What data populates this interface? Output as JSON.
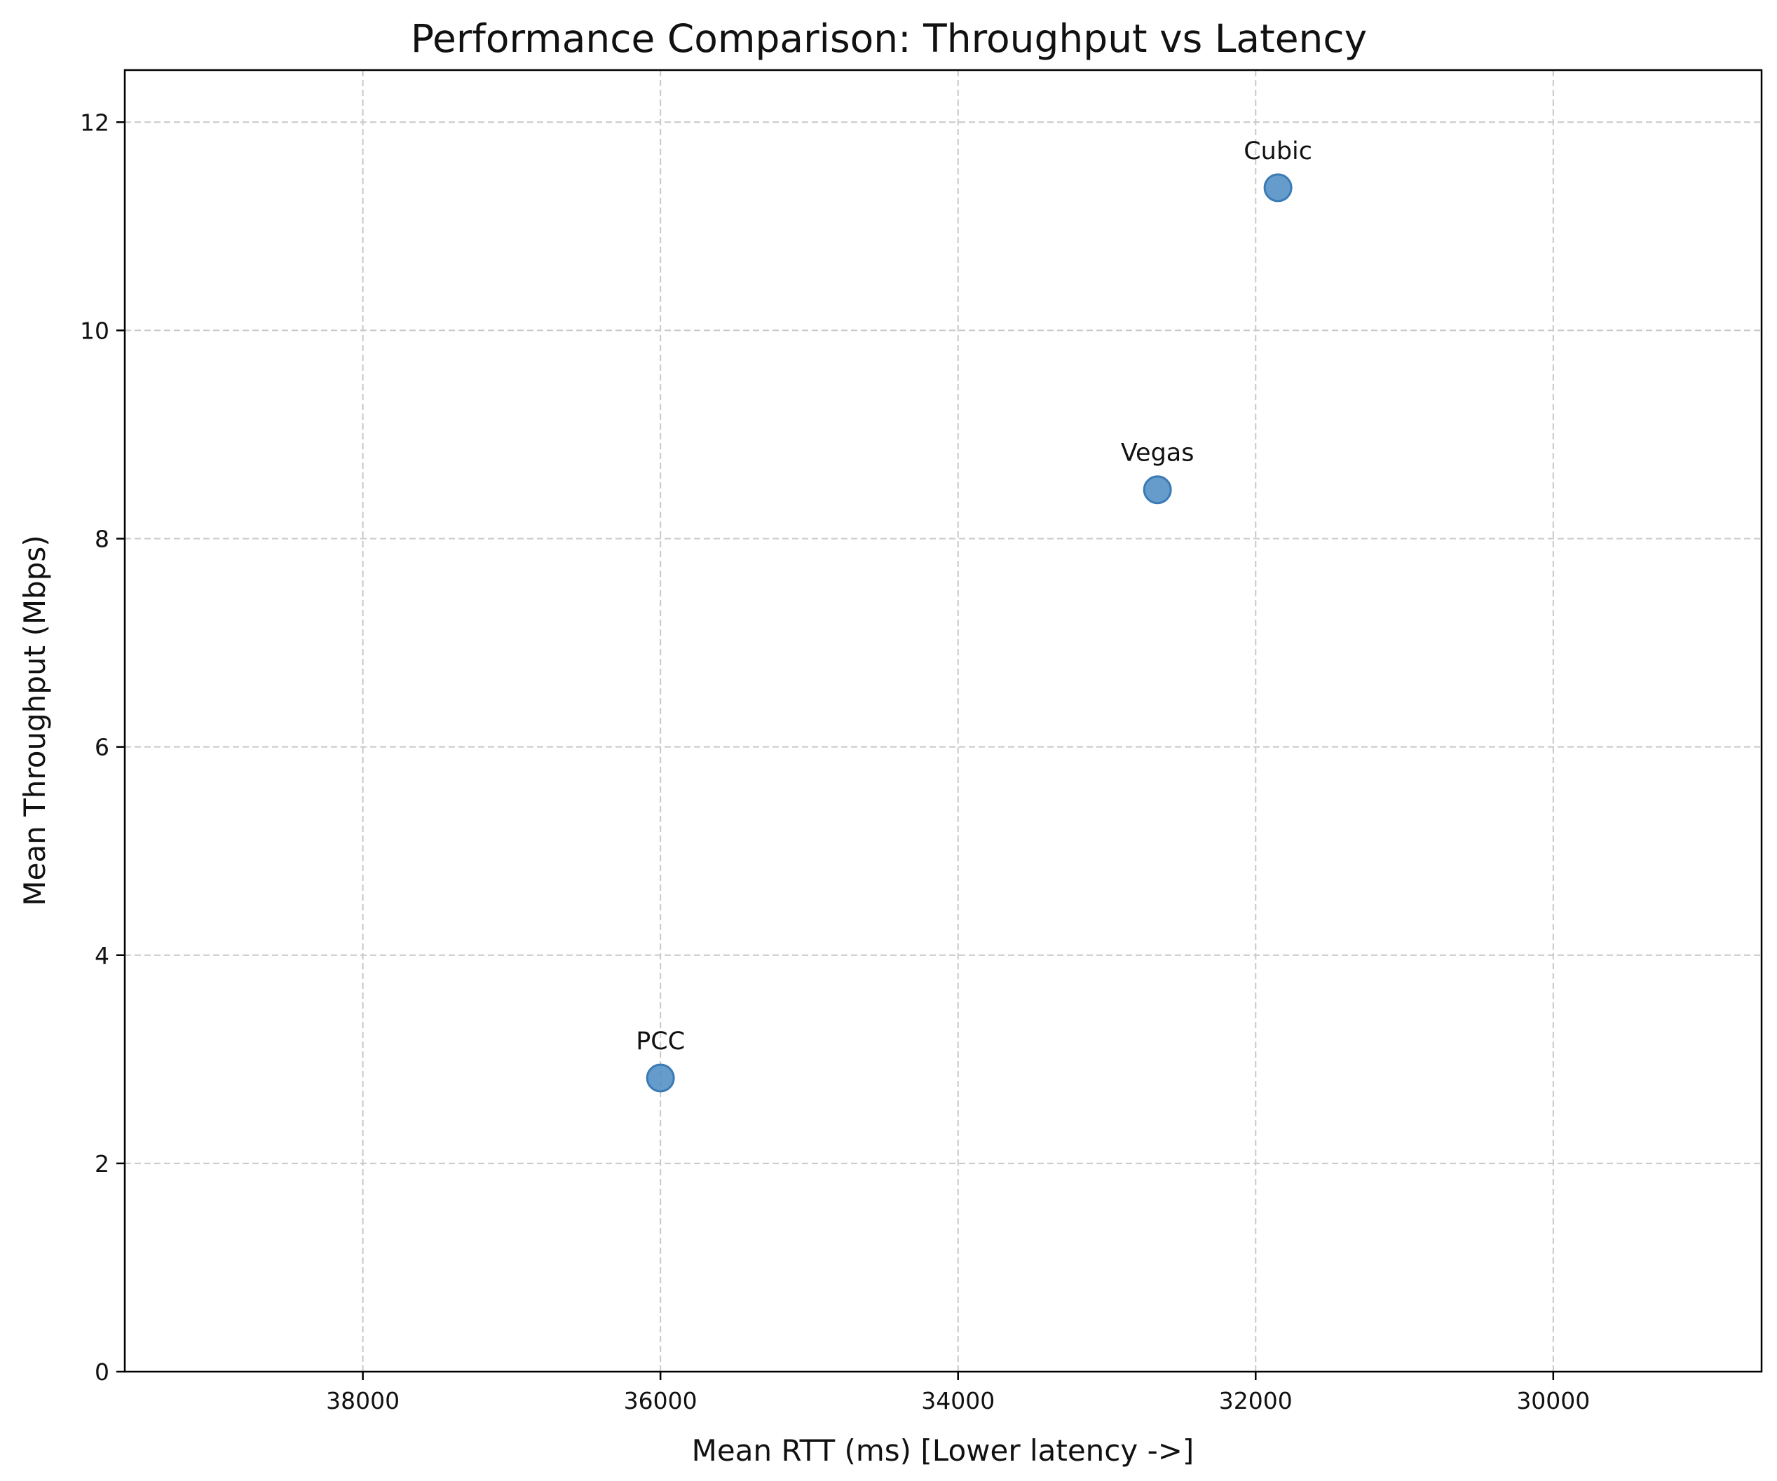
{
  "chart_data": {
    "type": "scatter",
    "title": "Performance Comparison: Throughput vs Latency",
    "xlabel": "Mean RTT (ms) [Lower latency ->]",
    "ylabel": "Mean Throughput (Mbps)",
    "xlim": [
      39600,
      28600
    ],
    "ylim": [
      0,
      12.5
    ],
    "x_inverted": true,
    "xticks": [
      38000,
      36000,
      34000,
      32000,
      30000
    ],
    "yticks": [
      0,
      2,
      4,
      6,
      8,
      10,
      12
    ],
    "grid": true,
    "legend": "none",
    "marker_color": "#4a8bc2",
    "points": [
      {
        "label": "Cubic",
        "x": 31850,
        "y": 11.37
      },
      {
        "label": "Vegas",
        "x": 32660,
        "y": 8.47
      },
      {
        "label": "PCC",
        "x": 36000,
        "y": 2.82
      }
    ]
  }
}
